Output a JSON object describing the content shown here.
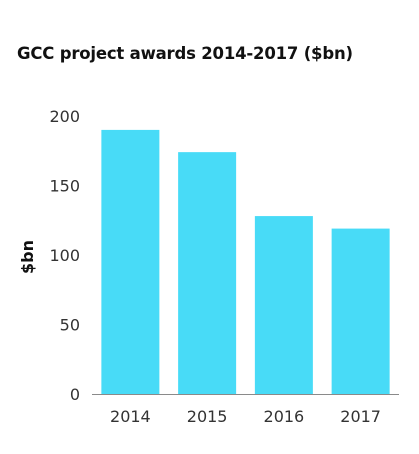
{
  "chart_data": {
    "type": "bar",
    "title": "GCC project awards 2014-2017 ($bn)",
    "xlabel": "",
    "ylabel": "$bn",
    "categories": [
      "2014",
      "2015",
      "2016",
      "2017"
    ],
    "values": [
      190,
      174,
      128,
      119
    ],
    "ylim": [
      0,
      200
    ],
    "yticks": [
      "0",
      "50",
      "100",
      "150",
      "200"
    ],
    "grid": false,
    "legend": "none",
    "bar_color": "#48dbf7",
    "axis_color": "#8a8a8a"
  }
}
